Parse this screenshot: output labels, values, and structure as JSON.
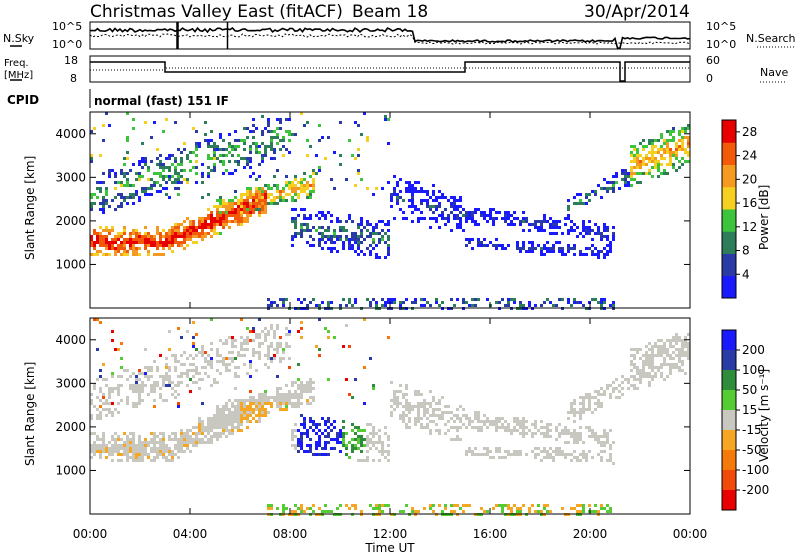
{
  "header": {
    "title": "Christmas Valley East (fitACF)",
    "beam": "Beam 18",
    "date": "30/Apr/2014"
  },
  "top_panel": {
    "left_label": "N.Sky",
    "right_label": "N.Search",
    "left_ticks": [
      "10^5",
      "10^0"
    ],
    "right_ticks": [
      "10^5",
      "10^0"
    ]
  },
  "freq_panel": {
    "left_label_1": "Freq.",
    "left_label_2": "[MHz]",
    "right_label": "Nave",
    "left_ticks": [
      "18",
      "8"
    ],
    "right_ticks": [
      "60",
      "0"
    ]
  },
  "cpid": {
    "label": "CPID",
    "mode": "normal (fast) 151 IF"
  },
  "colors": {
    "power": [
      "#1a1aff",
      "#2a3aa6",
      "#2e7d5a",
      "#3cc43c",
      "#f5d020",
      "#f59a20",
      "#f25a0a",
      "#e80000"
    ],
    "velocity": [
      "#1a1aff",
      "#2a3aa6",
      "#2e8c3a",
      "#55cc33",
      "#c8c8c0",
      "#f5a623",
      "#f57a0a",
      "#f24a0a",
      "#e80000"
    ]
  },
  "chart_data": [
    {
      "type": "heatmap",
      "panel": "power",
      "ylabel": "Slant Range [km]",
      "yticks": [
        1000,
        2000,
        3000,
        4000
      ],
      "ylim": [
        0,
        4500
      ],
      "xlim": [
        "00:00",
        "24:00"
      ],
      "colorbar_label": "Power [dB]",
      "colorbar_ticks": [
        "4",
        "8",
        "12",
        "16",
        "20",
        "24",
        "28"
      ],
      "colorbar_range": [
        0,
        30
      ]
    },
    {
      "type": "heatmap",
      "panel": "velocity",
      "ylabel": "Slant Range [km]",
      "yticks": [
        1000,
        2000,
        3000,
        4000
      ],
      "ylim": [
        0,
        4500
      ],
      "xlim": [
        "00:00",
        "24:00"
      ],
      "colorbar_label": "Velocity [m s⁻¹]",
      "colorbar_ticks": [
        "200",
        "100",
        "50",
        "15",
        "-15",
        "-50",
        "-100",
        "-200"
      ]
    }
  ],
  "xaxis": {
    "label": "Time UT",
    "ticks": [
      "00:00",
      "04:00",
      "08:00",
      "12:00",
      "16:00",
      "20:00",
      "00:00"
    ]
  }
}
